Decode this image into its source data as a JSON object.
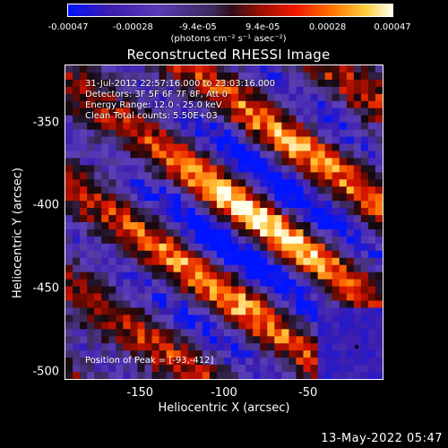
{
  "chart_data": {
    "type": "heatmap",
    "title": "Reconstructed RHESSI Image",
    "xlabel": "Heliocentric X (arcsec)",
    "ylabel": "Heliocentric Y (arcsec)",
    "xlim": [
      -195,
      -5
    ],
    "ylim": [
      -505,
      -315
    ],
    "xticks": [
      "-150",
      "-100",
      "-50"
    ],
    "yticks": [
      "-350",
      "-400",
      "-450",
      "-500"
    ],
    "colorbar": {
      "range": [
        -0.00047,
        0.00047
      ],
      "ticks": [
        "-0.00047",
        "-0.00028",
        "-9.4e-05",
        "9.4e-05",
        "0.00028",
        "0.00047"
      ],
      "unit_label": "(photons cm⁻² s⁻¹ asec⁻²)"
    },
    "annotations": {
      "time_range": "31-Jul-2012 22:57:16.000 to 23:03:16.000",
      "detectors": "Detectors: 3F 5F 6F 7F 8F, Att 0",
      "energy_range": "Energy Range: 12.0 - 25.0 keV",
      "method_counts": "Clean    Total counts: 5.50E+03",
      "peak": "Position of Peak = [-93,-412]"
    },
    "peak_position": [
      -93,
      -412
    ],
    "footer_date": "13-May-2022 05:47"
  }
}
